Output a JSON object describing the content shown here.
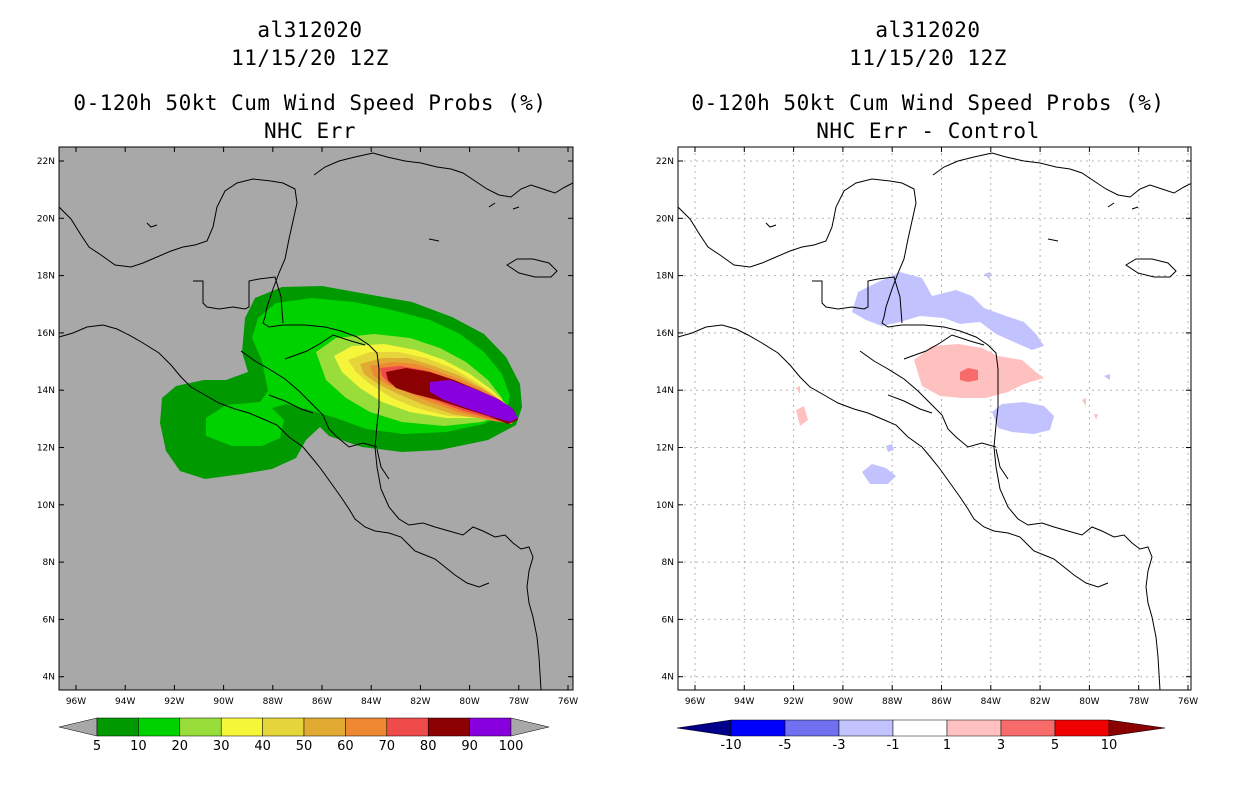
{
  "left_panel": {
    "storm_id": "al312020",
    "datetime": "11/15/20 12Z",
    "product": "0-120h 50kt Cum Wind Speed Probs (%)",
    "subtitle": "NHC Err",
    "background_color": "#a8a8a8",
    "colorbar": {
      "labels": [
        "5",
        "10",
        "20",
        "30",
        "40",
        "50",
        "60",
        "70",
        "80",
        "90",
        "100"
      ],
      "colors": [
        "#009a00",
        "#00d200",
        "#99dd3a",
        "#f5f53a",
        "#e6d53a",
        "#e0aa33",
        "#ee8833",
        "#f04b4b",
        "#8b0000",
        "#8800dd"
      ],
      "end_color": "#a8a8a8"
    }
  },
  "right_panel": {
    "storm_id": "al312020",
    "datetime": "11/15/20 12Z",
    "product": "0-120h 50kt Cum Wind Speed Probs (%)",
    "subtitle": "NHC Err - Control",
    "background_color": "#ffffff",
    "colorbar": {
      "labels": [
        "-10",
        "-5",
        "-3",
        "-1",
        "1",
        "3",
        "5",
        "10"
      ],
      "colors": [
        "#0000ff",
        "#7070f0",
        "#c2c2ff",
        "#ffffff",
        "#ffc0c0",
        "#f76b6b",
        "#f00000"
      ],
      "low_color": "#00008b",
      "high_color": "#8b0000"
    }
  },
  "map_axes": {
    "lat_ticks": [
      "22N",
      "20N",
      "18N",
      "16N",
      "14N",
      "12N",
      "10N",
      "8N",
      "6N",
      "4N"
    ],
    "lon_ticks": [
      "96W",
      "94W",
      "92W",
      "90W",
      "88W",
      "86W",
      "84W",
      "82W",
      "80W",
      "78W",
      "76W"
    ]
  }
}
